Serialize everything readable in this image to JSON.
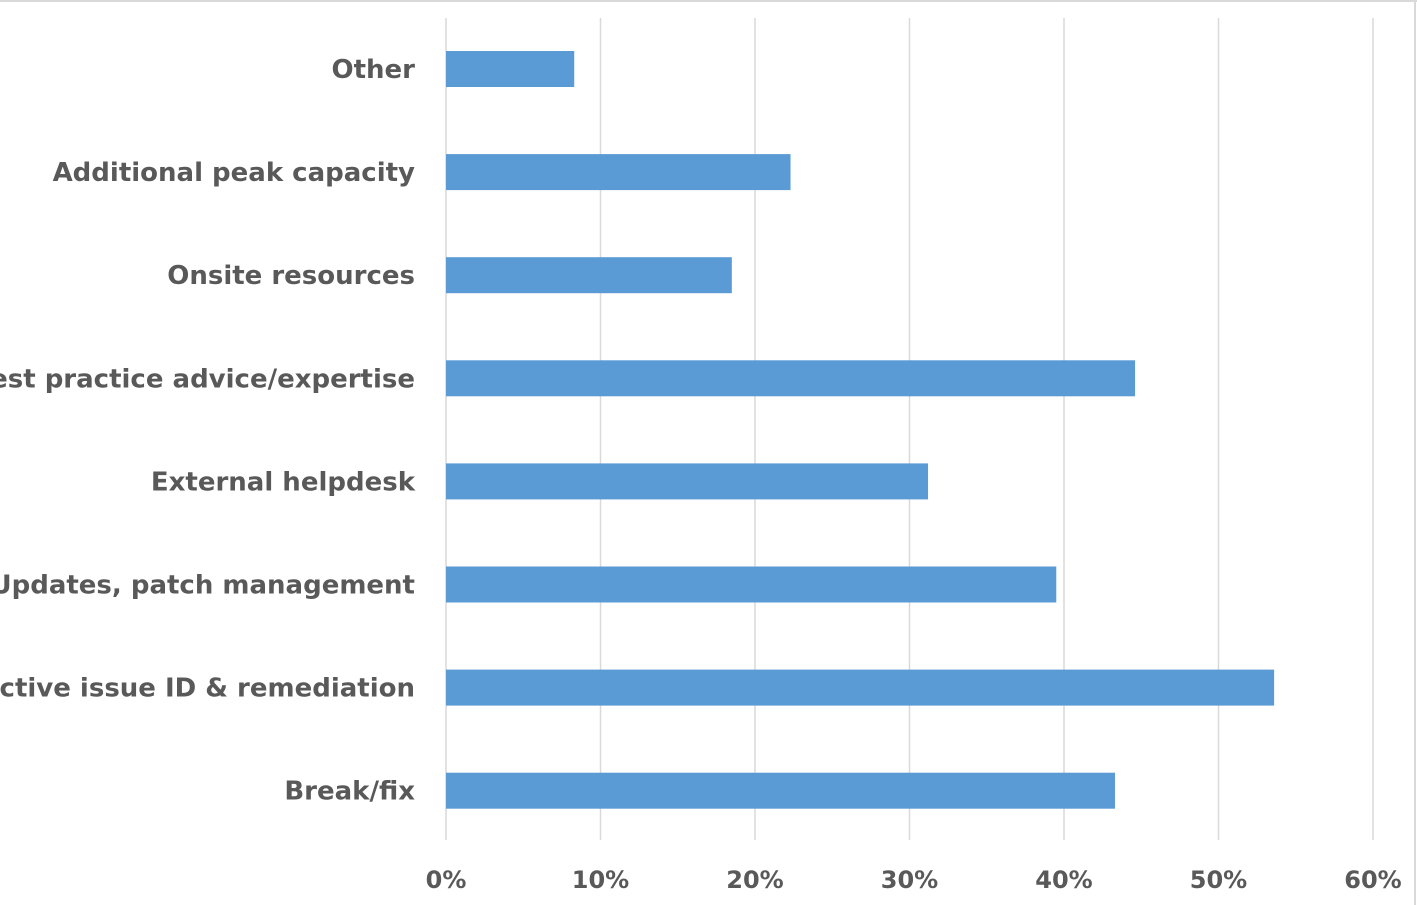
{
  "chart_data": {
    "type": "bar",
    "orientation": "horizontal",
    "categories": [
      "Other",
      "Additional peak capacity",
      "Onsite resources",
      "Best practice advice/expertise",
      "External helpdesk",
      "Updates, patch management",
      "Active issue ID & remediation",
      "Break/fix"
    ],
    "values": [
      8.3,
      22.3,
      18.5,
      44.6,
      31.2,
      39.5,
      53.6,
      43.3
    ],
    "value_unit": "%",
    "xlim": [
      0,
      60
    ],
    "x_ticks": [
      "0%",
      "10%",
      "20%",
      "30%",
      "40%",
      "50%",
      "60%"
    ],
    "title": "",
    "xlabel": "",
    "ylabel": "",
    "grid": "vertical",
    "legend": "none",
    "bar_color": "#5b9bd5"
  }
}
